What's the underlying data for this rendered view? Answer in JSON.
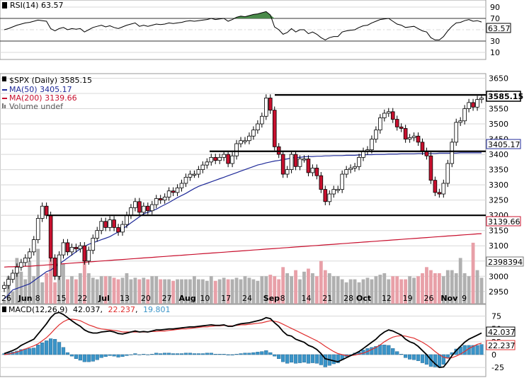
{
  "colors": {
    "up_body": "#ffffff",
    "down_body": "#c8102e",
    "wick": "#000000",
    "ma50": "#1f2a99",
    "ma200": "#c8102e",
    "vol_down": "#e8a0a8",
    "vol_up": "#b0b0b0",
    "rsi": "#000000",
    "rsi_fill": "#4a8a4a",
    "macd_line": "#000000",
    "macd_signal": "#e03030",
    "macd_hist": "#3a94c8",
    "grid": "#d8d8d8",
    "hline": "#000000"
  },
  "rsi_panel": {
    "legend": "RSI(14) 63.57",
    "current_label": "63.57",
    "ticks": [
      "90",
      "70",
      "50",
      "30",
      "10"
    ]
  },
  "price_panel": {
    "legend_symbol": "$SPX (Daily) 3585.15",
    "legend_ma50": "MA(50) 3405.17",
    "legend_ma200": "MA(200) 3139.66",
    "legend_volume": "Volume undef",
    "last_label": "3585.15",
    "ma50_label": "3405.17",
    "ma200_label": "3139.66",
    "volume_label": "2398394",
    "ticks": [
      "3650",
      "3600",
      "3550",
      "3500",
      "3450",
      "3400",
      "3350",
      "3300",
      "3250",
      "3200",
      "3150",
      "3100",
      "3050",
      "3000",
      "2950"
    ]
  },
  "x_labels": [
    "26",
    "Jun",
    "8",
    "15",
    "22",
    "Jul",
    "13",
    "20",
    "27",
    "Aug",
    "10",
    "17",
    "24",
    "Sep",
    "8",
    "14",
    "21",
    "28",
    "Oct",
    "12",
    "19",
    "26",
    "Nov",
    "9"
  ],
  "macd_panel": {
    "legend": "MACD(12,26,9)",
    "legend_macd": "42.037",
    "legend_signal": "22.237",
    "legend_hist": "19.801",
    "macd_label": "42.037",
    "signal_label": "22.237",
    "ticks": [
      "75",
      "50",
      "25",
      "0",
      "-25"
    ]
  },
  "chart_data": {
    "type": "candlestick",
    "title": "$SPX (Daily) 3585.15",
    "price_ylim": [
      2910,
      3665
    ],
    "rsi_ylim": [
      0,
      100
    ],
    "macd_ylim": [
      -40,
      95
    ],
    "horizontal_levels": [
      3595,
      3410,
      3200
    ],
    "x_labels": [
      "26",
      "Jun",
      "8",
      "15",
      "22",
      "Jul",
      "13",
      "20",
      "27",
      "Aug",
      "10",
      "17",
      "24",
      "Sep",
      "8",
      "14",
      "21",
      "28",
      "Oct",
      "12",
      "19",
      "26",
      "Nov",
      "9"
    ],
    "close": [
      2970,
      2990,
      3010,
      3030,
      3045,
      3060,
      3080,
      3120,
      3190,
      3230,
      3200,
      3060,
      3000,
      3070,
      3110,
      3080,
      3095,
      3090,
      3100,
      3050,
      3085,
      3125,
      3150,
      3180,
      3160,
      3185,
      3160,
      3145,
      3170,
      3200,
      3225,
      3245,
      3210,
      3230,
      3215,
      3235,
      3255,
      3250,
      3260,
      3280,
      3275,
      3290,
      3305,
      3325,
      3335,
      3335,
      3350,
      3365,
      3375,
      3390,
      3380,
      3390,
      3400,
      3370,
      3395,
      3435,
      3445,
      3445,
      3460,
      3480,
      3500,
      3525,
      3585,
      3545,
      3425,
      3400,
      3335,
      3350,
      3400,
      3360,
      3385,
      3385,
      3340,
      3355,
      3330,
      3285,
      3245,
      3270,
      3285,
      3285,
      3335,
      3350,
      3355,
      3360,
      3390,
      3410,
      3415,
      3450,
      3480,
      3520,
      3535,
      3540,
      3515,
      3490,
      3485,
      3450,
      3455,
      3460,
      3440,
      3410,
      3395,
      3315,
      3275,
      3270,
      3305,
      3370,
      3440,
      3505,
      3510,
      3550,
      3570,
      3555,
      3580,
      3585
    ],
    "volume": [
      2920,
      3000,
      2950,
      3060,
      3015,
      2990,
      3050,
      3000,
      3090,
      2980,
      3010,
      3200,
      2980,
      3030,
      3040,
      2990,
      3000,
      2990,
      3010,
      3080,
      3010,
      2995,
      2990,
      3000,
      3000,
      3000,
      2995,
      2990,
      2995,
      3010,
      2990,
      2995,
      2990,
      2995,
      2990,
      3000,
      3000,
      2990,
      2990,
      2990,
      2985,
      2990,
      2990,
      2990,
      2990,
      3000,
      2990,
      2990,
      2985,
      3000,
      2985,
      2990,
      2995,
      2990,
      2990,
      2995,
      2990,
      3000,
      2995,
      2990,
      2985,
      3000,
      3000,
      3005,
      3000,
      2990,
      3030,
      3010,
      3000,
      3020,
      2990,
      3015,
      3025,
      3010,
      3000,
      3050,
      3020,
      3010,
      3000,
      3000,
      2990,
      2980,
      2990,
      2990,
      2980,
      2990,
      2995,
      2990,
      3000,
      3005,
      3010,
      2990,
      3000,
      3000,
      2990,
      2990,
      3000,
      2995,
      3000,
      3010,
      3030,
      3020,
      3010,
      3010,
      3000,
      3020,
      3020,
      3010,
      3060,
      3010,
      3000,
      3110,
      3020,
      2995
    ],
    "ma50": [
      2925,
      2940,
      2955,
      2960,
      2965,
      2970,
      2975,
      2985,
      2995,
      3005,
      3015,
      3020,
      3030,
      3040,
      3050,
      3060,
      3070,
      3080,
      3090,
      3098,
      3105,
      3110,
      3115,
      3120,
      3125,
      3130,
      3138,
      3145,
      3155,
      3165,
      3175,
      3185,
      3195,
      3205,
      3210,
      3215,
      3220,
      3228,
      3235,
      3242,
      3250,
      3258,
      3265,
      3272,
      3280,
      3288,
      3295,
      3300,
      3305,
      3310,
      3315,
      3320,
      3325,
      3330,
      3335,
      3340,
      3345,
      3350,
      3355,
      3360,
      3365,
      3368,
      3372,
      3375,
      3378,
      3380,
      3383,
      3385,
      3388,
      3390,
      3390,
      3392,
      3393,
      3393,
      3394,
      3394,
      3395,
      3395,
      3396,
      3396,
      3396,
      3397,
      3397,
      3397,
      3398,
      3398,
      3399,
      3399,
      3400,
      3400,
      3400,
      3401,
      3401,
      3401,
      3402,
      3402,
      3402,
      3402,
      3403,
      3403,
      3403,
      3403,
      3403,
      3404,
      3404,
      3404,
      3404,
      3404,
      3405,
      3405,
      3405,
      3405,
      3405,
      3405
    ],
    "ma200": [
      3030,
      3031,
      3031,
      3032,
      3032,
      3033,
      3033,
      3034,
      3035,
      3036,
      3037,
      3038,
      3039,
      3040,
      3041,
      3042,
      3043,
      3044,
      3045,
      3046,
      3047,
      3048,
      3049,
      3050,
      3051,
      3052,
      3053,
      3054,
      3055,
      3056,
      3057,
      3058,
      3059,
      3060,
      3061,
      3062,
      3063,
      3064,
      3065,
      3066,
      3067,
      3068,
      3069,
      3070,
      3071,
      3072,
      3073,
      3074,
      3075,
      3076,
      3077,
      3078,
      3079,
      3080,
      3081,
      3082,
      3083,
      3084,
      3085,
      3086,
      3087,
      3088,
      3089,
      3090,
      3091,
      3092,
      3093,
      3094,
      3095,
      3096,
      3097,
      3098,
      3099,
      3100,
      3101,
      3102,
      3103,
      3104,
      3105,
      3106,
      3107,
      3108,
      3109,
      3110,
      3111,
      3112,
      3113,
      3114,
      3115,
      3116,
      3117,
      3118,
      3119,
      3120,
      3121,
      3122,
      3123,
      3124,
      3125,
      3126,
      3127,
      3128,
      3129,
      3130,
      3131,
      3132,
      3133,
      3134,
      3135,
      3136,
      3137,
      3138,
      3139,
      3139.66
    ],
    "rsi": [
      50,
      52,
      55,
      58,
      60,
      62,
      63,
      65,
      67,
      66,
      65,
      52,
      48,
      52,
      54,
      50,
      52,
      51,
      52,
      46,
      50,
      54,
      56,
      58,
      55,
      57,
      54,
      52,
      55,
      58,
      60,
      62,
      56,
      58,
      56,
      58,
      60,
      59,
      60,
      62,
      61,
      62,
      63,
      65,
      66,
      65,
      66,
      67,
      68,
      70,
      68,
      69,
      70,
      65,
      68,
      72,
      74,
      73,
      75,
      77,
      78,
      80,
      82,
      76,
      55,
      50,
      42,
      45,
      52,
      46,
      50,
      50,
      43,
      46,
      42,
      36,
      32,
      36,
      38,
      38,
      46,
      48,
      49,
      50,
      54,
      57,
      58,
      62,
      65,
      68,
      69,
      70,
      65,
      60,
      58,
      54,
      55,
      56,
      52,
      48,
      46,
      36,
      32,
      32,
      38,
      48,
      56,
      62,
      63,
      66,
      68,
      65,
      66,
      63.57
    ],
    "macd": [
      2,
      5,
      8,
      12,
      18,
      22,
      26,
      30,
      40,
      50,
      60,
      72,
      80,
      82,
      78,
      72,
      66,
      60,
      55,
      48,
      44,
      42,
      42,
      44,
      45,
      46,
      44,
      41,
      40,
      42,
      44,
      46,
      44,
      45,
      44,
      46,
      48,
      48,
      49,
      50,
      50,
      51,
      52,
      53,
      54,
      54,
      55,
      56,
      57,
      58,
      57,
      57,
      58,
      55,
      55,
      58,
      60,
      61,
      62,
      64,
      66,
      68,
      72,
      70,
      62,
      55,
      45,
      38,
      36,
      30,
      27,
      24,
      18,
      15,
      10,
      2,
      -8,
      -10,
      -12,
      -14,
      -10,
      -6,
      -2,
      2,
      6,
      12,
      18,
      24,
      30,
      38,
      44,
      48,
      46,
      42,
      38,
      30,
      25,
      22,
      16,
      8,
      0,
      -10,
      -18,
      -25,
      -24,
      -14,
      -2,
      8,
      16,
      24,
      30,
      34,
      38,
      42.037
    ],
    "macd_signal": [
      0,
      1,
      3,
      5,
      8,
      11,
      14,
      17,
      21,
      27,
      33,
      41,
      50,
      58,
      64,
      68,
      69,
      68,
      66,
      62,
      58,
      55,
      52,
      50,
      49,
      48,
      47,
      46,
      44,
      44,
      44,
      44,
      44,
      44,
      44,
      45,
      45,
      46,
      46,
      47,
      48,
      49,
      50,
      50,
      51,
      52,
      53,
      54,
      54,
      55,
      56,
      56,
      57,
      56,
      56,
      57,
      58,
      58,
      59,
      60,
      61,
      62,
      64,
      66,
      65,
      63,
      59,
      55,
      51,
      47,
      43,
      39,
      35,
      31,
      27,
      22,
      16,
      11,
      6,
      2,
      0,
      -2,
      -2,
      -1,
      1,
      3,
      6,
      10,
      14,
      19,
      25,
      30,
      34,
      36,
      37,
      36,
      34,
      32,
      28,
      24,
      19,
      13,
      6,
      0,
      -5,
      -7,
      -6,
      -3,
      1,
      6,
      12,
      16,
      20,
      22.237
    ]
  }
}
